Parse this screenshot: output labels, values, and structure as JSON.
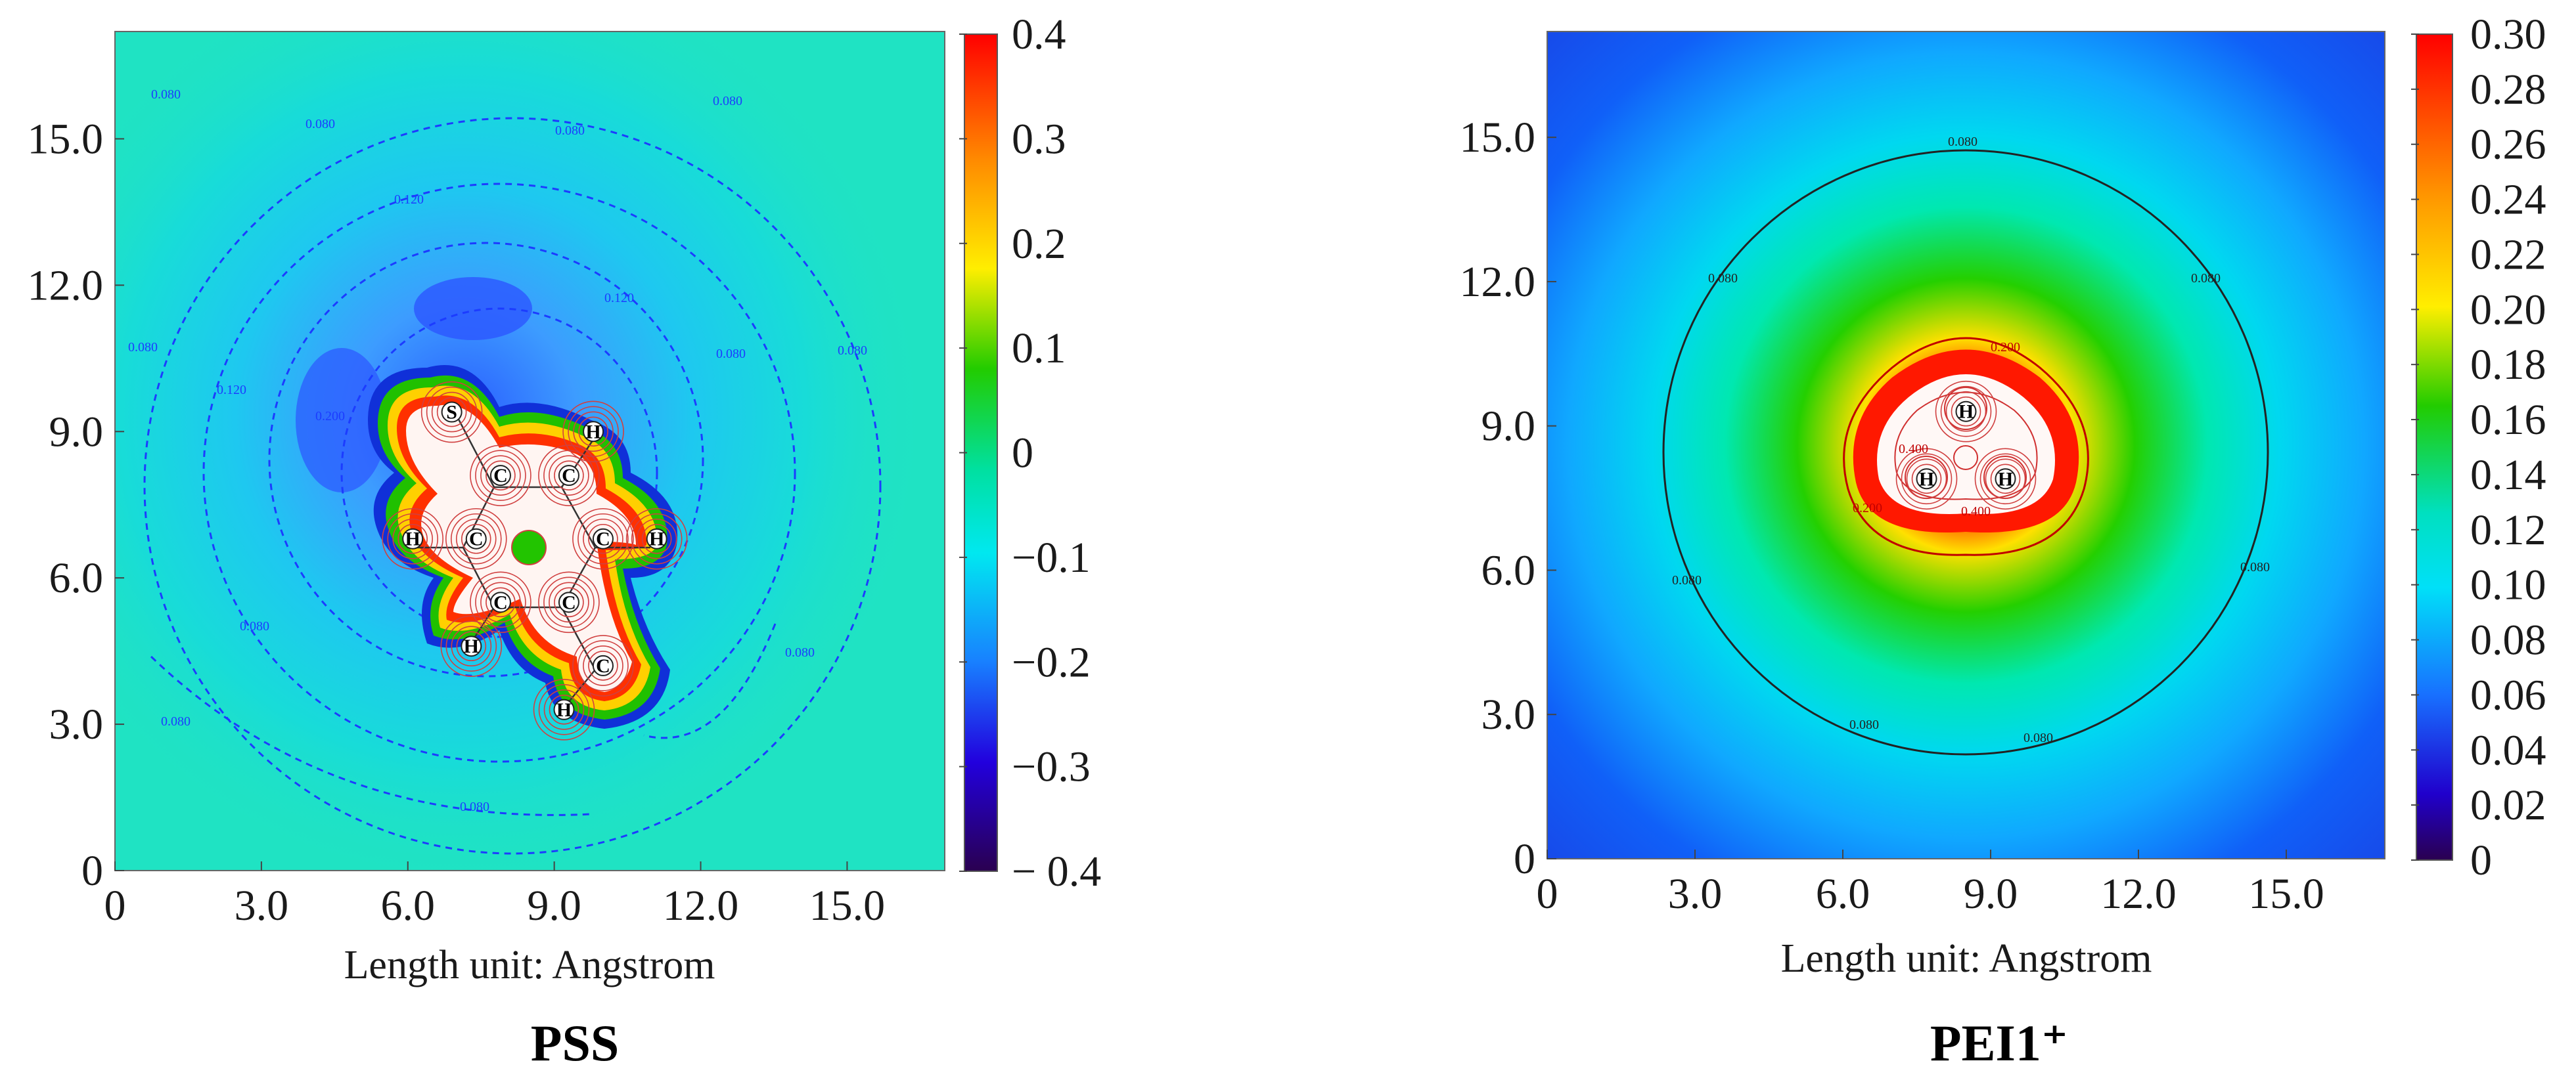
{
  "chart_data": [
    {
      "type": "heatmap",
      "title": "PSS",
      "xlabel": "Length unit: Angstrom",
      "x_ticks": [
        "0",
        "3.0",
        "6.0",
        "9.0",
        "12.0",
        "15.0"
      ],
      "y_ticks": [
        "0",
        "3.0",
        "6.0",
        "9.0",
        "12.0",
        "15.0"
      ],
      "xlim": [
        0,
        17.0
      ],
      "ylim": [
        0,
        17.2
      ],
      "colorbar": {
        "range": [
          -0.4,
          0.4
        ],
        "ticks": [
          "0.4",
          "0.3",
          "0.2",
          "0.1",
          "0",
          "−0.1",
          "−0.2",
          "−0.3",
          "− 0.4"
        ]
      },
      "contour_labels": [
        "0.080",
        "0.080",
        "0.080",
        "0.080",
        "0.080",
        "0.080",
        "0.080",
        "0.080",
        "0.080",
        "0.120",
        "0.120",
        "0.120",
        "0.200",
        "0.080",
        "0.080"
      ],
      "atoms": [
        {
          "label": "S",
          "x": 6.9,
          "y": 9.4
        },
        {
          "label": "C",
          "x": 7.9,
          "y": 8.1
        },
        {
          "label": "C",
          "x": 9.3,
          "y": 8.1
        },
        {
          "label": "H",
          "x": 9.8,
          "y": 9.0
        },
        {
          "label": "C",
          "x": 7.4,
          "y": 6.8
        },
        {
          "label": "H",
          "x": 6.1,
          "y": 6.8
        },
        {
          "label": "C",
          "x": 10.0,
          "y": 6.8
        },
        {
          "label": "H",
          "x": 11.1,
          "y": 6.8
        },
        {
          "label": "C",
          "x": 7.9,
          "y": 5.5
        },
        {
          "label": "C",
          "x": 9.3,
          "y": 5.5
        },
        {
          "label": "H",
          "x": 7.3,
          "y": 4.6
        },
        {
          "label": "C",
          "x": 10.0,
          "y": 4.2
        },
        {
          "label": "H",
          "x": 9.2,
          "y": 3.3
        }
      ]
    },
    {
      "type": "heatmap",
      "title": "PEI1⁺",
      "xlabel": "Length unit: Angstrom",
      "x_ticks": [
        "0",
        "3.0",
        "6.0",
        "9.0",
        "12.0",
        "15.0"
      ],
      "y_ticks": [
        "0",
        "3.0",
        "6.0",
        "9.0",
        "12.0",
        "15.0"
      ],
      "xlim": [
        0,
        17.0
      ],
      "ylim": [
        0,
        17.2
      ],
      "colorbar": {
        "range": [
          0,
          0.3
        ],
        "ticks": [
          "0.30",
          "0.28",
          "0.26",
          "0.24",
          "0.22",
          "0.20",
          "0.18",
          "0.16",
          "0.14",
          "0.12",
          "0.10",
          "0.08",
          "0.06",
          "0.04",
          "0.02",
          "0"
        ]
      },
      "contour_labels": [
        "0.080",
        "0.080",
        "0.080",
        "0.080",
        "0.080",
        "0.080",
        "0.080",
        "0.200",
        "0.200",
        "0.400",
        "0.400"
      ],
      "atoms": [
        {
          "label": "H",
          "x": 8.5,
          "y": 9.3
        },
        {
          "label": "H",
          "x": 7.7,
          "y": 7.9
        },
        {
          "label": "H",
          "x": 9.3,
          "y": 7.9
        }
      ]
    }
  ]
}
